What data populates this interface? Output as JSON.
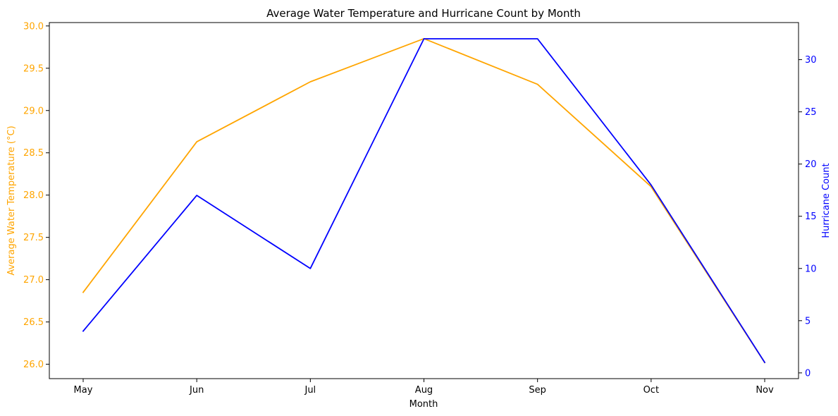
{
  "chart_data": {
    "type": "line",
    "title": "Average Water Temperature and Hurricane Count by Month",
    "xlabel": "Month",
    "categories": [
      "May",
      "Jun",
      "Jul",
      "Aug",
      "Sep",
      "Oct",
      "Nov"
    ],
    "series": [
      {
        "axis": "left",
        "color": "#ffa500",
        "values": [
          26.85,
          28.63,
          29.34,
          29.85,
          29.31,
          28.1,
          26.02
        ]
      },
      {
        "axis": "right",
        "color": "#0000ff",
        "values": [
          4,
          17,
          10,
          32,
          32,
          18,
          1
        ]
      }
    ],
    "y_left": {
      "label": "Average Water Temperature (°C)",
      "color": "#ffa500",
      "lim": [
        25.83,
        30.04
      ],
      "ticks": [
        "26.0",
        "26.5",
        "27.0",
        "27.5",
        "28.0",
        "28.5",
        "29.0",
        "29.5",
        "30.0"
      ]
    },
    "y_right": {
      "label": "Hurricane Count",
      "color": "#0000ff",
      "lim": [
        -0.55,
        33.55
      ],
      "ticks": [
        "0",
        "5",
        "10",
        "15",
        "20",
        "25",
        "30"
      ]
    },
    "grid": false
  }
}
